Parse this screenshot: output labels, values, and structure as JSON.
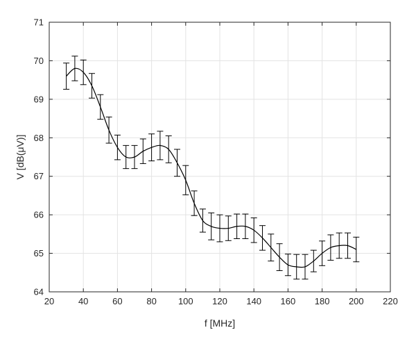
{
  "chart_data": {
    "type": "line",
    "title": "",
    "xlabel": "f [MHz]",
    "ylabel": "V [dB(μV)]",
    "xlim": [
      20,
      220
    ],
    "ylim": [
      64,
      71
    ],
    "xticks": [
      "20",
      "40",
      "60",
      "80",
      "100",
      "120",
      "140",
      "160",
      "180",
      "200",
      "220"
    ],
    "yticks": [
      "64",
      "65",
      "66",
      "67",
      "68",
      "69",
      "70",
      "71"
    ],
    "grid": true,
    "legend": "none",
    "series": [
      {
        "color": "#000000",
        "errorbars": true,
        "x": [
          30,
          35,
          40,
          45,
          50,
          55,
          60,
          65,
          70,
          75,
          80,
          85,
          90,
          95,
          100,
          105,
          110,
          115,
          120,
          125,
          130,
          135,
          140,
          145,
          150,
          155,
          160,
          165,
          170,
          175,
          180,
          185,
          190,
          195,
          200
        ],
        "y": [
          69.6,
          69.8,
          69.7,
          69.35,
          68.8,
          68.2,
          67.75,
          67.5,
          67.5,
          67.65,
          67.75,
          67.8,
          67.7,
          67.35,
          66.9,
          66.3,
          65.85,
          65.7,
          65.65,
          65.65,
          65.7,
          65.7,
          65.6,
          65.4,
          65.15,
          64.9,
          64.7,
          64.65,
          64.65,
          64.8,
          65.0,
          65.15,
          65.2,
          65.2,
          65.1
        ],
        "err": [
          0.34,
          0.32,
          0.32,
          0.32,
          0.32,
          0.34,
          0.32,
          0.3,
          0.3,
          0.32,
          0.35,
          0.37,
          0.35,
          0.35,
          0.38,
          0.32,
          0.3,
          0.35,
          0.35,
          0.32,
          0.32,
          0.32,
          0.32,
          0.32,
          0.35,
          0.35,
          0.28,
          0.32,
          0.32,
          0.28,
          0.32,
          0.33,
          0.33,
          0.33,
          0.32
        ]
      }
    ]
  }
}
